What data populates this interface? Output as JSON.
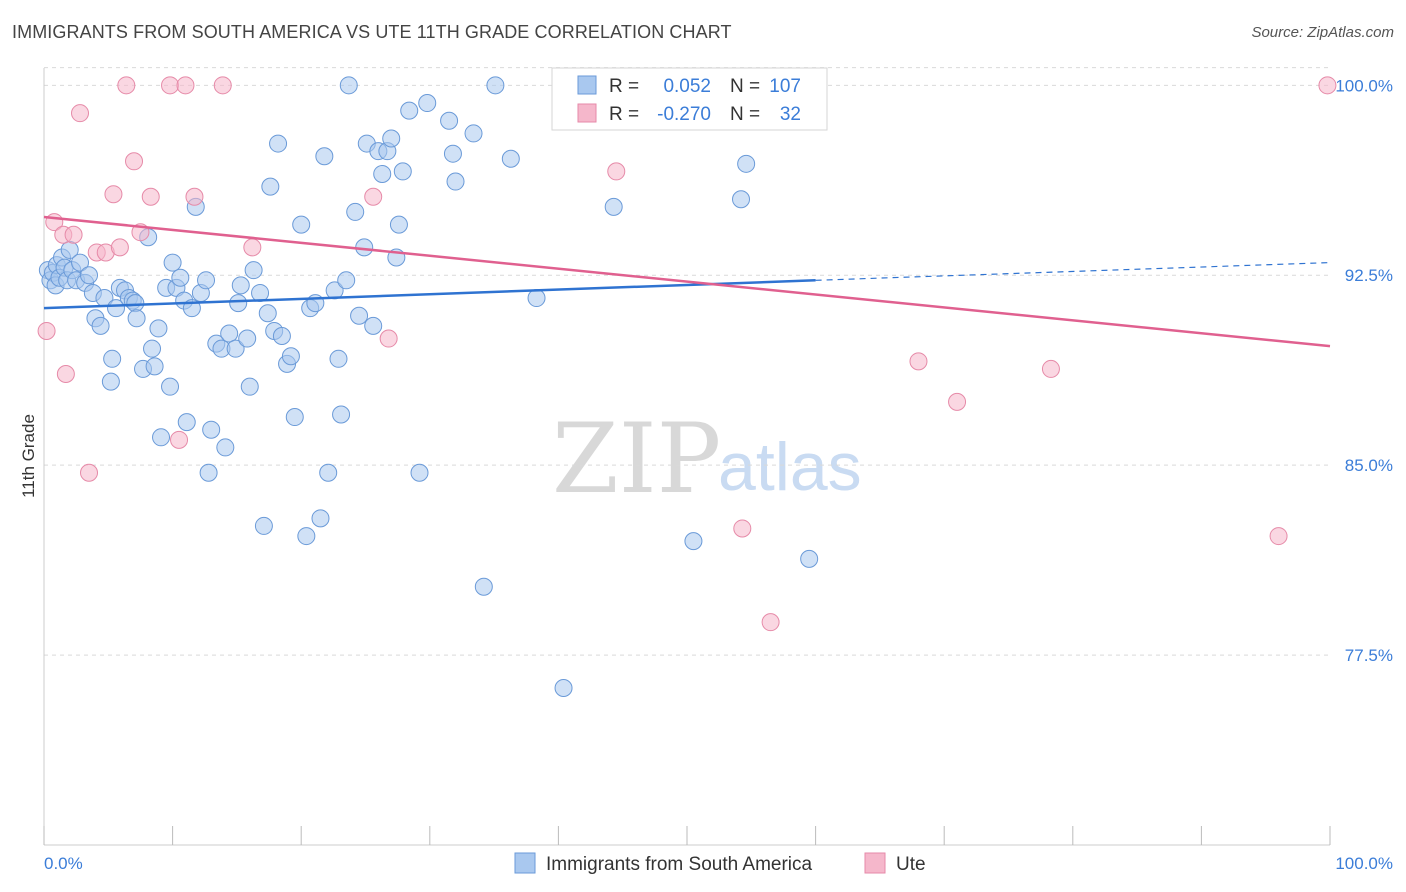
{
  "title": "IMMIGRANTS FROM SOUTH AMERICA VS UTE 11TH GRADE CORRELATION CHART",
  "source": "Source: ZipAtlas.com",
  "colors": {
    "blue_fill": "#a9c8ef",
    "blue_stroke": "#6a9ad8",
    "blue_line": "#2f73d1",
    "pink_fill": "#f5b7cb",
    "pink_stroke": "#e68aa8",
    "pink_line": "#e0608f",
    "tick_color": "#3b7dd8",
    "grid_color": "#d9d9d9"
  },
  "legend": {
    "rows": [
      {
        "r_label": "R =",
        "r_value": "0.052",
        "n_label": "N =",
        "n_value": "107"
      },
      {
        "r_label": "R =",
        "r_value": "-0.270",
        "n_label": "N =",
        "n_value": "32"
      }
    ]
  },
  "bottom_legend": [
    {
      "label": "Immigrants from South America"
    },
    {
      "label": "Ute"
    }
  ],
  "watermark": {
    "zip": "ZIP",
    "atlas": "atlas"
  },
  "chart_data": {
    "type": "scatter",
    "title": "IMMIGRANTS FROM SOUTH AMERICA VS UTE 11TH GRADE CORRELATION CHART",
    "xlabel": "",
    "ylabel": "11th Grade",
    "xlim": [
      0,
      100
    ],
    "ylim": [
      70.0,
      101.0
    ],
    "x_tick_labels": [
      "0.0%",
      "100.0%"
    ],
    "y_ticks": [
      77.5,
      85.0,
      92.5,
      100.0
    ],
    "y_tick_labels": [
      "77.5%",
      "85.0%",
      "92.5%",
      "100.0%"
    ],
    "grid": true,
    "legend_position": "top-center",
    "series": [
      {
        "name": "Immigrants from South America",
        "color": "#a9c8ef",
        "trend": {
          "x0": 0,
          "y0": 91.2,
          "x1": 60,
          "y1": 92.3,
          "dashed_to_x": 100,
          "dashed_to_y": 93.0
        },
        "points": [
          [
            0.3,
            92.7
          ],
          [
            0.5,
            92.3
          ],
          [
            0.7,
            92.6
          ],
          [
            0.9,
            92.1
          ],
          [
            1.0,
            92.9
          ],
          [
            1.2,
            92.4
          ],
          [
            1.4,
            93.2
          ],
          [
            1.6,
            92.8
          ],
          [
            1.8,
            92.3
          ],
          [
            2.0,
            93.5
          ],
          [
            2.2,
            92.7
          ],
          [
            2.5,
            92.3
          ],
          [
            2.8,
            93.0
          ],
          [
            3.2,
            92.2
          ],
          [
            3.5,
            92.5
          ],
          [
            3.8,
            91.8
          ],
          [
            4.0,
            90.8
          ],
          [
            4.4,
            90.5
          ],
          [
            4.7,
            91.6
          ],
          [
            5.3,
            89.2
          ],
          [
            5.2,
            88.3
          ],
          [
            5.6,
            91.2
          ],
          [
            5.9,
            92.0
          ],
          [
            6.3,
            91.9
          ],
          [
            6.6,
            91.6
          ],
          [
            6.9,
            91.5
          ],
          [
            7.1,
            91.4
          ],
          [
            7.2,
            90.8
          ],
          [
            7.7,
            88.8
          ],
          [
            8.1,
            94.0
          ],
          [
            8.4,
            89.6
          ],
          [
            8.6,
            88.9
          ],
          [
            8.9,
            90.4
          ],
          [
            9.1,
            86.1
          ],
          [
            9.5,
            92.0
          ],
          [
            9.8,
            88.1
          ],
          [
            10.0,
            93.0
          ],
          [
            10.3,
            92.0
          ],
          [
            10.6,
            92.4
          ],
          [
            10.9,
            91.5
          ],
          [
            11.1,
            86.7
          ],
          [
            11.5,
            91.2
          ],
          [
            11.8,
            95.2
          ],
          [
            12.2,
            91.8
          ],
          [
            12.6,
            92.3
          ],
          [
            12.8,
            84.7
          ],
          [
            13.0,
            86.4
          ],
          [
            13.4,
            89.8
          ],
          [
            13.8,
            89.6
          ],
          [
            14.1,
            85.7
          ],
          [
            14.4,
            90.2
          ],
          [
            14.9,
            89.6
          ],
          [
            15.1,
            91.4
          ],
          [
            15.3,
            92.1
          ],
          [
            15.8,
            90.0
          ],
          [
            16.0,
            88.1
          ],
          [
            16.3,
            92.7
          ],
          [
            16.8,
            91.8
          ],
          [
            17.1,
            82.6
          ],
          [
            17.4,
            91.0
          ],
          [
            17.6,
            96.0
          ],
          [
            17.9,
            90.3
          ],
          [
            18.2,
            97.7
          ],
          [
            18.5,
            90.1
          ],
          [
            18.9,
            89.0
          ],
          [
            19.2,
            89.3
          ],
          [
            19.5,
            86.9
          ],
          [
            20.0,
            94.5
          ],
          [
            20.4,
            82.2
          ],
          [
            20.7,
            91.2
          ],
          [
            21.1,
            91.4
          ],
          [
            21.5,
            82.9
          ],
          [
            21.8,
            97.2
          ],
          [
            22.1,
            84.7
          ],
          [
            22.6,
            91.9
          ],
          [
            22.9,
            89.2
          ],
          [
            23.1,
            87.0
          ],
          [
            23.5,
            92.3
          ],
          [
            23.7,
            100.0
          ],
          [
            24.2,
            95.0
          ],
          [
            24.5,
            90.9
          ],
          [
            24.9,
            93.6
          ],
          [
            25.1,
            97.7
          ],
          [
            25.6,
            90.5
          ],
          [
            26.0,
            97.4
          ],
          [
            26.3,
            96.5
          ],
          [
            26.7,
            97.4
          ],
          [
            27.0,
            97.9
          ],
          [
            27.4,
            93.2
          ],
          [
            27.6,
            94.5
          ],
          [
            27.9,
            96.6
          ],
          [
            28.4,
            99.0
          ],
          [
            29.2,
            84.7
          ],
          [
            29.8,
            99.3
          ],
          [
            31.5,
            98.6
          ],
          [
            31.8,
            97.3
          ],
          [
            32.0,
            96.2
          ],
          [
            33.4,
            98.1
          ],
          [
            34.2,
            80.2
          ],
          [
            35.1,
            100.0
          ],
          [
            36.3,
            97.1
          ],
          [
            38.3,
            91.6
          ],
          [
            40.4,
            76.2
          ],
          [
            44.3,
            95.2
          ],
          [
            50.5,
            82.0
          ],
          [
            54.2,
            95.5
          ],
          [
            54.6,
            96.9
          ],
          [
            59.5,
            81.3
          ]
        ]
      },
      {
        "name": "Ute",
        "color": "#f5b7cb",
        "trend": {
          "x0": 0,
          "y0": 94.8,
          "x1": 100,
          "y1": 89.7
        },
        "points": [
          [
            0.2,
            90.3
          ],
          [
            0.8,
            94.6
          ],
          [
            1.5,
            94.1
          ],
          [
            1.7,
            88.6
          ],
          [
            2.3,
            94.1
          ],
          [
            2.8,
            98.9
          ],
          [
            3.5,
            84.7
          ],
          [
            4.1,
            93.4
          ],
          [
            4.8,
            93.4
          ],
          [
            5.4,
            95.7
          ],
          [
            5.9,
            93.6
          ],
          [
            6.4,
            100.0
          ],
          [
            7.0,
            97.0
          ],
          [
            7.5,
            94.2
          ],
          [
            8.3,
            95.6
          ],
          [
            9.8,
            100.0
          ],
          [
            10.5,
            86.0
          ],
          [
            11.0,
            100.0
          ],
          [
            11.7,
            95.6
          ],
          [
            13.9,
            100.0
          ],
          [
            16.2,
            93.6
          ],
          [
            25.6,
            95.6
          ],
          [
            26.8,
            90.0
          ],
          [
            44.5,
            96.6
          ],
          [
            54.3,
            82.5
          ],
          [
            55.0,
            100.0
          ],
          [
            56.5,
            78.8
          ],
          [
            68.0,
            89.1
          ],
          [
            71.0,
            87.5
          ],
          [
            78.3,
            88.8
          ],
          [
            96.0,
            82.2
          ],
          [
            99.8,
            100.0
          ]
        ]
      }
    ]
  }
}
